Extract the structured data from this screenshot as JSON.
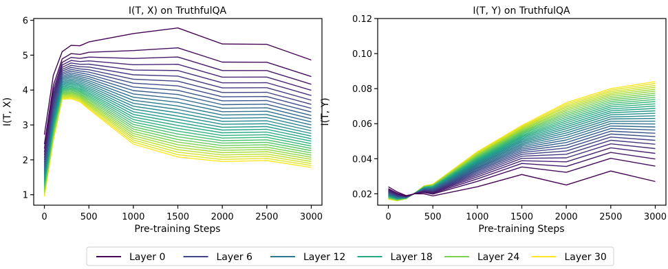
{
  "x_steps": [
    0,
    100,
    200,
    300,
    400,
    500,
    1000,
    1500,
    2000,
    2500,
    3000
  ],
  "chart_data": [
    {
      "type": "line",
      "title": "I(T, X) on TruthfulQA",
      "xlabel": "Pre-training Steps",
      "ylabel": "I(T, X)",
      "xlim": [
        -120,
        3120
      ],
      "ylim": [
        0.7,
        6.05
      ],
      "xticks": [
        "0",
        "500",
        "1000",
        "1500",
        "2000",
        "2500",
        "3000"
      ],
      "yticks": [
        "1",
        "2",
        "3",
        "4",
        "5",
        "6"
      ],
      "grid": false,
      "first_layer": {
        "name": "Layer 0",
        "values": [
          2.72,
          4.42,
          5.1,
          5.28,
          5.27,
          5.38,
          5.62,
          5.78,
          5.32,
          5.31,
          4.86
        ]
      },
      "last_layer": {
        "name": "Layer 30",
        "values": [
          0.95,
          2.55,
          3.74,
          3.75,
          3.66,
          3.45,
          2.45,
          2.08,
          1.95,
          1.98,
          1.78
        ]
      }
    },
    {
      "type": "line",
      "title": "I(T, Y) on TruthfulQA",
      "xlabel": "Pre-training Steps",
      "ylabel": "I(T, Y)",
      "xlim": [
        -120,
        3120
      ],
      "ylim": [
        0.0135,
        0.12
      ],
      "xticks": [
        "0",
        "500",
        "1000",
        "1500",
        "2000",
        "2500",
        "3000"
      ],
      "yticks": [
        "0.02",
        "0.04",
        "0.06",
        "0.08",
        "0.10",
        "0.12"
      ],
      "grid": false,
      "first_layer": {
        "name": "Layer 0",
        "values": [
          0.024,
          0.021,
          0.019,
          0.02,
          0.02,
          0.0188,
          0.024,
          0.031,
          0.025,
          0.033,
          0.027
        ]
      },
      "last_layer": {
        "name": "Layer 30",
        "values": [
          0.017,
          0.016,
          0.0172,
          0.0205,
          0.0245,
          0.0255,
          0.044,
          0.059,
          0.072,
          0.08,
          0.084
        ]
      }
    }
  ],
  "legend": {
    "placement": "bottom-center",
    "entries": [
      {
        "label": "Layer 0",
        "color": "#440154"
      },
      {
        "label": "Layer 6",
        "color": "#414487"
      },
      {
        "label": "Layer 12",
        "color": "#2a788e"
      },
      {
        "label": "Layer 18",
        "color": "#22a884"
      },
      {
        "label": "Layer 24",
        "color": "#7ad151"
      },
      {
        "label": "Layer 30",
        "color": "#fde725"
      }
    ]
  }
}
